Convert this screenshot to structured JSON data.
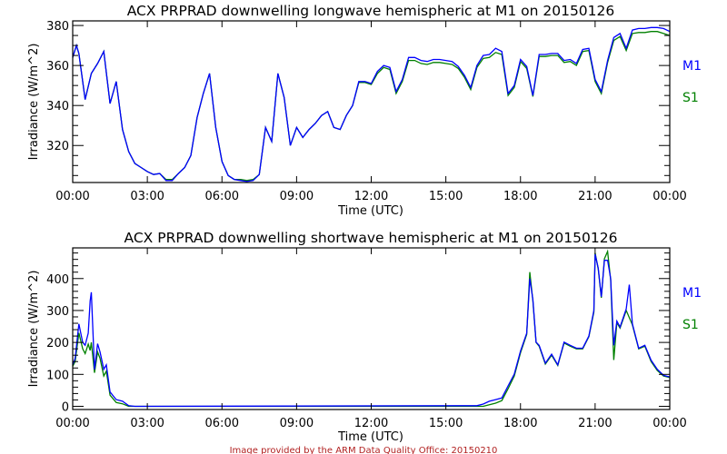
{
  "footer": "Image provided by the ARM Data Quality Office: 20150210",
  "colors": {
    "M1": "#0000ff",
    "S1": "#008000",
    "footer": "#b22222"
  },
  "chart_data": [
    {
      "type": "line",
      "title": "ACX PRPRAD downwelling longwave hemispheric at M1 on 20150126",
      "xlabel": "Time (UTC)",
      "ylabel": "Irradiance (W/m^2)",
      "xlim": [
        0,
        24
      ],
      "ylim": [
        301.5,
        382.3
      ],
      "xticks": [
        "00:00",
        "03:00",
        "06:00",
        "09:00",
        "12:00",
        "15:00",
        "18:00",
        "21:00",
        "00:00"
      ],
      "yticks": [
        320,
        340,
        360,
        380
      ],
      "yminor_step": 5,
      "legend": [
        "M1",
        "S1"
      ],
      "legend_position": "right",
      "series": [
        {
          "name": "M1",
          "x": [
            0,
            0.15,
            0.25,
            0.5,
            0.75,
            1.0,
            1.25,
            1.5,
            1.75,
            2.0,
            2.25,
            2.5,
            2.75,
            3.0,
            3.25,
            3.5,
            3.75,
            4.0,
            4.25,
            4.5,
            4.75,
            5.0,
            5.25,
            5.5,
            5.75,
            6.0,
            6.25,
            6.5,
            6.75,
            7.0,
            7.25,
            7.5,
            7.75,
            8.0,
            8.25,
            8.5,
            8.75,
            9.0,
            9.25,
            9.5,
            9.75,
            10.0,
            10.25,
            10.5,
            10.75,
            11.0,
            11.25,
            11.5,
            11.75,
            12.0,
            12.25,
            12.5,
            12.75,
            13.0,
            13.25,
            13.5,
            13.75,
            14.0,
            14.25,
            14.5,
            14.75,
            15.0,
            15.25,
            15.5,
            15.75,
            16.0,
            16.25,
            16.5,
            16.75,
            17.0,
            17.25,
            17.5,
            17.75,
            18.0,
            18.25,
            18.5,
            18.75,
            19.0,
            19.25,
            19.5,
            19.75,
            20.0,
            20.25,
            20.5,
            20.75,
            21.0,
            21.25,
            21.5,
            21.75,
            22.0,
            22.25,
            22.5,
            22.75,
            23.0,
            23.25,
            23.5,
            23.75,
            24.0
          ],
          "y": [
            364,
            370,
            366,
            343,
            356,
            361,
            367,
            341,
            352,
            328,
            317,
            311,
            309,
            307,
            305.5,
            306,
            302.5,
            302.5,
            306,
            309,
            315,
            334,
            346,
            356,
            329,
            312,
            305,
            303,
            302.5,
            302,
            302.5,
            305.5,
            329,
            322,
            356,
            344,
            320,
            329,
            324,
            328,
            331,
            335,
            337,
            329,
            328,
            335,
            340,
            352,
            352,
            351,
            357,
            360,
            359,
            347,
            353,
            364,
            364,
            362.5,
            362,
            363,
            363,
            362.5,
            362,
            359.5,
            355,
            349,
            360,
            365,
            365.5,
            368.6,
            367,
            346,
            350,
            363,
            359.5,
            345,
            365.5,
            365.5,
            366,
            366,
            362.5,
            363,
            361,
            368,
            368.6,
            353,
            347,
            362.5,
            374,
            376,
            368.6,
            377.7,
            378.5,
            378.5,
            379,
            379,
            378.5,
            377
          ]
        },
        {
          "name": "S1",
          "x": [
            0,
            0.15,
            0.25,
            0.5,
            0.75,
            1.0,
            1.25,
            1.5,
            1.75,
            2.0,
            2.25,
            2.5,
            2.75,
            3.0,
            3.25,
            3.5,
            3.75,
            4.0,
            4.25,
            4.5,
            4.75,
            5.0,
            5.25,
            5.5,
            5.75,
            6.0,
            6.25,
            6.5,
            6.75,
            7.0,
            7.25,
            7.5,
            7.75,
            8.0,
            8.25,
            8.5,
            8.75,
            9.0,
            9.25,
            9.5,
            9.75,
            10.0,
            10.25,
            10.5,
            10.75,
            11.0,
            11.25,
            11.5,
            11.75,
            12.0,
            12.25,
            12.5,
            12.75,
            13.0,
            13.25,
            13.5,
            13.75,
            14.0,
            14.25,
            14.5,
            14.75,
            15.0,
            15.25,
            15.5,
            15.75,
            16.0,
            16.25,
            16.5,
            16.75,
            17.0,
            17.25,
            17.5,
            17.75,
            18.0,
            18.25,
            18.5,
            18.75,
            19.0,
            19.25,
            19.5,
            19.75,
            20.0,
            20.25,
            20.5,
            20.75,
            21.0,
            21.25,
            21.5,
            21.75,
            22.0,
            22.25,
            22.5,
            22.75,
            23.0,
            23.25,
            23.5,
            23.75,
            24.0
          ],
          "y": [
            364,
            370,
            366,
            343,
            356,
            361,
            367,
            341,
            352,
            328,
            317,
            311,
            309,
            307,
            305.5,
            306,
            303,
            303,
            306,
            309,
            315,
            334,
            346,
            356,
            329,
            312,
            305,
            303,
            303,
            302.5,
            303,
            305.5,
            329,
            322,
            356,
            344,
            320,
            329,
            324,
            328,
            331,
            335,
            337,
            329,
            328,
            335,
            340,
            351.5,
            351.5,
            350.5,
            356,
            359,
            358,
            346,
            352,
            362.5,
            362.5,
            361,
            360.5,
            361.5,
            361.5,
            361,
            360.5,
            358.5,
            354,
            348,
            359,
            363.5,
            364,
            366.5,
            365.5,
            345,
            349,
            362,
            358.5,
            344.5,
            364.5,
            364.5,
            365,
            365,
            361.5,
            362,
            360,
            367,
            367.5,
            352,
            346,
            361.5,
            372.5,
            374.5,
            367.5,
            376,
            376.5,
            376.5,
            377,
            377,
            376,
            375
          ]
        }
      ]
    },
    {
      "type": "line",
      "title": "ACX PRPRAD downwelling shortwave hemispheric at M1 on 20150126",
      "xlabel": "Time (UTC)",
      "ylabel": "Irradiance (W/m^2)",
      "xlim": [
        0,
        24
      ],
      "ylim": [
        -10,
        496
      ],
      "xticks": [
        "00:00",
        "03:00",
        "06:00",
        "09:00",
        "12:00",
        "15:00",
        "18:00",
        "21:00",
        "00:00"
      ],
      "yticks": [
        0,
        100,
        200,
        300,
        400
      ],
      "yminor_step": 20,
      "legend": [
        "M1",
        "S1"
      ],
      "legend_position": "right",
      "series": [
        {
          "name": "M1",
          "x": [
            0,
            0.1,
            0.25,
            0.4,
            0.5,
            0.625,
            0.7,
            0.75,
            0.875,
            1.0,
            1.1,
            1.25,
            1.35,
            1.5,
            1.75,
            2.0,
            2.25,
            2.5,
            16.0,
            16.25,
            16.5,
            16.75,
            17.0,
            17.25,
            17.5,
            17.75,
            18.0,
            18.25,
            18.375,
            18.5,
            18.625,
            18.75,
            19.0,
            19.25,
            19.5,
            19.75,
            20.0,
            20.25,
            20.5,
            20.75,
            20.95,
            21.0,
            21.125,
            21.25,
            21.375,
            21.5,
            21.625,
            21.75,
            21.875,
            22.0,
            22.25,
            22.375,
            22.5,
            22.75,
            23.0,
            23.25,
            23.5,
            23.75,
            24.0
          ],
          "y": [
            130,
            150,
            258,
            200,
            191,
            229,
            330,
            357,
            115,
            196,
            170,
            116,
            130,
            45,
            21,
            16,
            2,
            0,
            2,
            2,
            7,
            16,
            21,
            26,
            64,
            101,
            173,
            229,
            400,
            334,
            201,
            191,
            135,
            163,
            130,
            201,
            191,
            182,
            182,
            220,
            300,
            476,
            433,
            343,
            457,
            457,
            400,
            191,
            267,
            248,
            305,
            381,
            258,
            182,
            191,
            144,
            116,
            97,
            92
          ]
        },
        {
          "name": "S1",
          "x": [
            0,
            0.1,
            0.25,
            0.4,
            0.5,
            0.625,
            0.7,
            0.75,
            0.875,
            1.0,
            1.1,
            1.25,
            1.35,
            1.5,
            1.75,
            2.0,
            2.25,
            2.5,
            16.0,
            16.25,
            16.5,
            16.75,
            17.0,
            17.25,
            17.5,
            17.75,
            18.0,
            18.25,
            18.375,
            18.5,
            18.625,
            18.75,
            19.0,
            19.25,
            19.5,
            19.75,
            20.0,
            20.25,
            20.5,
            20.75,
            20.95,
            21.0,
            21.125,
            21.25,
            21.375,
            21.5,
            21.625,
            21.75,
            21.875,
            22.0,
            22.25,
            22.5,
            22.75,
            23.0,
            23.25,
            23.5,
            23.75,
            24.0
          ],
          "y": [
            125,
            140,
            230,
            180,
            165,
            195,
            175,
            200,
            105,
            170,
            150,
            95,
            110,
            35,
            12,
            8,
            0,
            0,
            0,
            0,
            0,
            5,
            10,
            18,
            55,
            95,
            168,
            225,
            420,
            330,
            200,
            188,
            132,
            160,
            128,
            198,
            188,
            180,
            180,
            218,
            295,
            480,
            430,
            340,
            462,
            485,
            395,
            145,
            262,
            245,
            300,
            255,
            180,
            188,
            140,
            112,
            95,
            90
          ]
        }
      ]
    }
  ]
}
